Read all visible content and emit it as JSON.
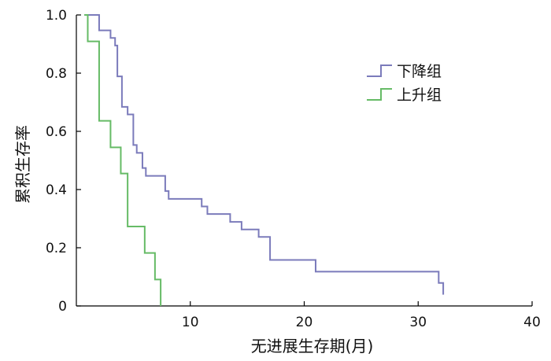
{
  "chart_data": {
    "type": "line",
    "xlabel": "无进展生存期(月)",
    "ylabel": "累积生存率",
    "xlim": [
      0,
      40
    ],
    "ylim": [
      0,
      1
    ],
    "x_ticks": [
      10,
      20,
      30,
      40
    ],
    "y_ticks": [
      0,
      0.2,
      0.4,
      0.6,
      0.8,
      1.0
    ],
    "x_tick_labels": [
      "10",
      "20",
      "30",
      "40"
    ],
    "y_tick_labels": [
      "0",
      "0.2",
      "0.4",
      "0.6",
      "0.8",
      "1.0"
    ],
    "grid": false,
    "legend_position": "top-right",
    "series": [
      {
        "name": "下降组",
        "color": "#7b7bbb",
        "x": [
          0.7,
          2.0,
          3.0,
          3.4,
          3.6,
          4.0,
          4.5,
          5.0,
          5.3,
          5.8,
          6.1,
          7.8,
          8.1,
          11.0,
          11.5,
          13.5,
          14.5,
          16.0,
          17.0,
          21.0,
          31.8,
          32.2
        ],
        "y": [
          1.0,
          0.947,
          0.921,
          0.895,
          0.789,
          0.684,
          0.658,
          0.553,
          0.526,
          0.474,
          0.447,
          0.395,
          0.368,
          0.342,
          0.316,
          0.289,
          0.263,
          0.237,
          0.158,
          0.118,
          0.079,
          0.039
        ]
      },
      {
        "name": "上升组",
        "color": "#66bb66",
        "x": [
          0.7,
          1.0,
          2.0,
          3.0,
          3.9,
          4.5,
          6.0,
          6.9,
          7.4
        ],
        "y": [
          1.0,
          0.909,
          0.636,
          0.545,
          0.455,
          0.273,
          0.182,
          0.091,
          0.0
        ]
      }
    ]
  }
}
